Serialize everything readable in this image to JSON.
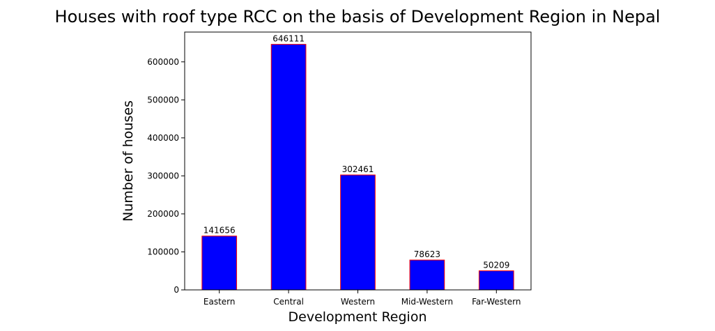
{
  "chart_data": {
    "type": "bar",
    "title": "Houses with roof type RCC on the basis of Development Region in Nepal",
    "xlabel": "Development Region",
    "ylabel": "Number of houses",
    "categories": [
      "Eastern",
      "Central",
      "Western",
      "Mid-Western",
      "Far-Western"
    ],
    "values": [
      141656,
      646111,
      302461,
      78623,
      50209
    ],
    "value_labels": [
      "141656",
      "646111",
      "302461",
      "78623",
      "50209"
    ],
    "ylim": [
      0,
      678417
    ],
    "yticks": [
      0,
      100000,
      200000,
      300000,
      400000,
      500000,
      600000
    ],
    "ytick_labels": [
      "0",
      "100000",
      "200000",
      "300000",
      "400000",
      "500000",
      "600000"
    ],
    "grid": false,
    "legend": "none",
    "bar_color": "#0000ff",
    "bar_edge_color": "#ff0000"
  }
}
